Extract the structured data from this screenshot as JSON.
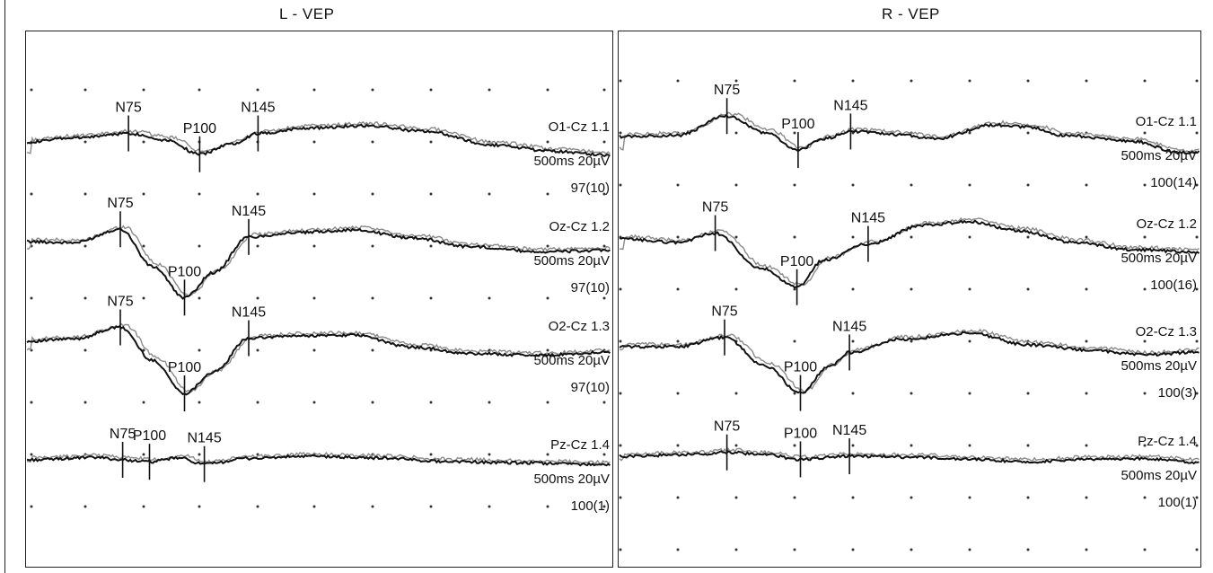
{
  "panels": [
    {
      "title": "L - VEP",
      "channels": [
        {
          "channel": "O1-Cz 1.1",
          "scale": "500ms 20µV",
          "count": "97(10)",
          "peaks": [
            {
              "label": "N75",
              "t_ms": 87
            },
            {
              "label": "P100",
              "t_ms": 148
            },
            {
              "label": "N145",
              "t_ms": 198
            }
          ]
        },
        {
          "channel": "Oz-Cz 1.2",
          "scale": "500ms 20µV",
          "count": "97(10)",
          "peaks": [
            {
              "label": "N75",
              "t_ms": 80
            },
            {
              "label": "P100",
              "t_ms": 135
            },
            {
              "label": "N145",
              "t_ms": 190
            }
          ]
        },
        {
          "channel": "O2-Cz 1.3",
          "scale": "500ms 20µV",
          "count": "97(10)",
          "peaks": [
            {
              "label": "N75",
              "t_ms": 80
            },
            {
              "label": "P100",
              "t_ms": 135
            },
            {
              "label": "N145",
              "t_ms": 190
            }
          ]
        },
        {
          "channel": "Pz-Cz 1.4",
          "scale": "500ms 20µV",
          "count": "100(1)",
          "peaks": [
            {
              "label": "N75",
              "t_ms": 82
            },
            {
              "label": "P100",
              "t_ms": 105
            },
            {
              "label": "N145",
              "t_ms": 152
            }
          ]
        }
      ]
    },
    {
      "title": "R - VEP",
      "channels": [
        {
          "channel": "O1-Cz 1.1",
          "scale": "500ms 20µV",
          "count": "100(14)",
          "peaks": [
            {
              "label": "N75",
              "t_ms": 92
            },
            {
              "label": "P100",
              "t_ms": 153
            },
            {
              "label": "N145",
              "t_ms": 198
            }
          ]
        },
        {
          "channel": "Oz-Cz 1.2",
          "scale": "500ms 20µV",
          "count": "100(16)",
          "peaks": [
            {
              "label": "N75",
              "t_ms": 82
            },
            {
              "label": "P100",
              "t_ms": 152
            },
            {
              "label": "N145",
              "t_ms": 213
            }
          ]
        },
        {
          "channel": "O2-Cz 1.3",
          "scale": "500ms 20µV",
          "count": "100(3)",
          "peaks": [
            {
              "label": "N75",
              "t_ms": 90
            },
            {
              "label": "P100",
              "t_ms": 155
            },
            {
              "label": "N145",
              "t_ms": 197
            }
          ]
        },
        {
          "channel": "Pz-Cz 1.4",
          "scale": "500ms 20µV",
          "count": "100(1)",
          "peaks": [
            {
              "label": "N75",
              "t_ms": 92
            },
            {
              "label": "P100",
              "t_ms": 155
            },
            {
              "label": "N145",
              "t_ms": 197
            }
          ]
        }
      ]
    }
  ],
  "chart_data": {
    "type": "line",
    "x_unit": "ms",
    "xlim": [
      0,
      500
    ],
    "grid": true,
    "grid_style": "dots",
    "traces": [
      "trial 1",
      "trial 2"
    ],
    "series": [
      {
        "panel": "L - VEP",
        "channel": "O1-Cz 1.1",
        "points": [
          [
            0,
            0
          ],
          [
            40,
            1
          ],
          [
            87,
            2.2
          ],
          [
            120,
            0.5
          ],
          [
            148,
            -3.2
          ],
          [
            175,
            -0.5
          ],
          [
            198,
            2.2
          ],
          [
            240,
            3.6
          ],
          [
            290,
            4.2
          ],
          [
            340,
            2.8
          ],
          [
            400,
            -0.8
          ],
          [
            450,
            -2.4
          ],
          [
            500,
            -3.4
          ]
        ]
      },
      {
        "panel": "L - VEP",
        "channel": "Oz-Cz 1.2",
        "points": [
          [
            0,
            0
          ],
          [
            40,
            -0.3
          ],
          [
            80,
            3.2
          ],
          [
            108,
            -6.5
          ],
          [
            135,
            -14.5
          ],
          [
            160,
            -8
          ],
          [
            190,
            1.2
          ],
          [
            230,
            2.3
          ],
          [
            280,
            3
          ],
          [
            330,
            1
          ],
          [
            380,
            -1.3
          ],
          [
            440,
            -2.6
          ],
          [
            500,
            -2.3
          ]
        ]
      },
      {
        "panel": "L - VEP",
        "channel": "O2-Cz 1.3",
        "points": [
          [
            0,
            0
          ],
          [
            40,
            0.6
          ],
          [
            80,
            3.6
          ],
          [
            108,
            -5
          ],
          [
            135,
            -13.5
          ],
          [
            160,
            -8
          ],
          [
            190,
            0.8
          ],
          [
            230,
            1.4
          ],
          [
            280,
            1.6
          ],
          [
            330,
            -1.5
          ],
          [
            380,
            -3.2
          ],
          [
            440,
            -3.6
          ],
          [
            500,
            -2.8
          ]
        ]
      },
      {
        "panel": "L - VEP",
        "channel": "Pz-Cz 1.4",
        "points": [
          [
            0,
            0
          ],
          [
            60,
            0.6
          ],
          [
            82,
            0
          ],
          [
            105,
            -0.5
          ],
          [
            130,
            0.5
          ],
          [
            152,
            -1.1
          ],
          [
            190,
            0.4
          ],
          [
            240,
            0.9
          ],
          [
            300,
            0.5
          ],
          [
            360,
            -0.4
          ],
          [
            420,
            -0.8
          ],
          [
            500,
            -1.2
          ]
        ]
      },
      {
        "panel": "R - VEP",
        "channel": "O1-Cz 1.1",
        "points": [
          [
            0,
            0
          ],
          [
            50,
            0.3
          ],
          [
            92,
            5.3
          ],
          [
            125,
            1
          ],
          [
            153,
            -3.5
          ],
          [
            175,
            -0.6
          ],
          [
            198,
            1.3
          ],
          [
            240,
            0.5
          ],
          [
            270,
            -0.6
          ],
          [
            320,
            3
          ],
          [
            350,
            2.5
          ],
          [
            380,
            0.3
          ],
          [
            440,
            -1.2
          ],
          [
            480,
            -4.2
          ],
          [
            500,
            -3.8
          ]
        ]
      },
      {
        "panel": "R - VEP",
        "channel": "Oz-Cz 1.2",
        "points": [
          [
            0,
            0
          ],
          [
            50,
            -0.9
          ],
          [
            82,
            1.5
          ],
          [
            120,
            -7.5
          ],
          [
            152,
            -12.5
          ],
          [
            175,
            -5.5
          ],
          [
            213,
            -1.3
          ],
          [
            260,
            3.5
          ],
          [
            300,
            4.5
          ],
          [
            340,
            2.2
          ],
          [
            390,
            -0.9
          ],
          [
            440,
            -2.8
          ],
          [
            500,
            -3.5
          ]
        ]
      },
      {
        "panel": "R - VEP",
        "channel": "O2-Cz 1.3",
        "points": [
          [
            0,
            0
          ],
          [
            50,
            0
          ],
          [
            90,
            2.4
          ],
          [
            125,
            -5
          ],
          [
            155,
            -12
          ],
          [
            180,
            -5
          ],
          [
            197,
            -1.5
          ],
          [
            240,
            1.9
          ],
          [
            300,
            3.5
          ],
          [
            350,
            0.5
          ],
          [
            400,
            -0.8
          ],
          [
            450,
            -2.1
          ],
          [
            500,
            -1.3
          ]
        ]
      },
      {
        "panel": "R - VEP",
        "channel": "Pz-Cz 1.4",
        "points": [
          [
            0,
            0
          ],
          [
            60,
            0.4
          ],
          [
            92,
            1
          ],
          [
            125,
            0.4
          ],
          [
            155,
            -0.8
          ],
          [
            197,
            0
          ],
          [
            250,
            -0.2
          ],
          [
            300,
            -0.8
          ],
          [
            350,
            -1.4
          ],
          [
            400,
            -0.8
          ],
          [
            450,
            -0.6
          ],
          [
            500,
            -1.6
          ]
        ]
      }
    ]
  }
}
